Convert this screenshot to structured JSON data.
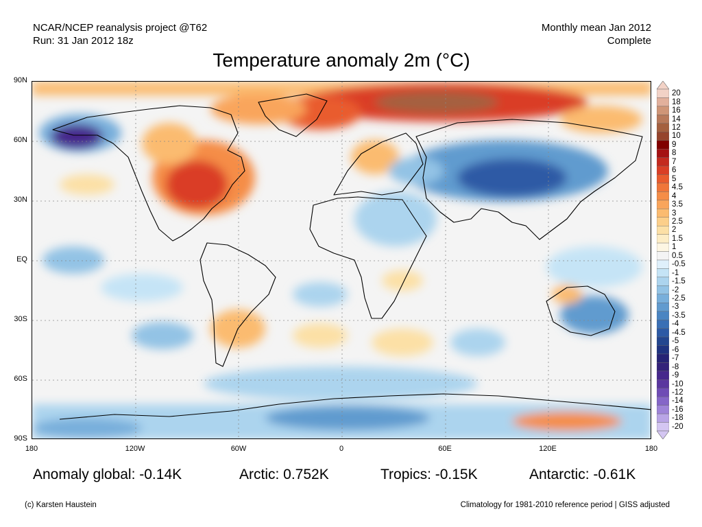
{
  "header": {
    "left_line1": "NCAR/NCEP reanalysis project @T62",
    "left_line2": "Run: 31 Jan 2012 18z",
    "right_line1": "Monthly mean Jan 2012",
    "right_line2": "Complete"
  },
  "title": "Temperature anomaly 2m (°C)",
  "axes": {
    "lat_labels": [
      "90N",
      "60N",
      "30N",
      "EQ",
      "30S",
      "60S",
      "90S"
    ],
    "lon_labels": [
      "180",
      "120W",
      "60W",
      "0",
      "60E",
      "120E",
      "180"
    ]
  },
  "colorbar": {
    "labels": [
      "20",
      "18",
      "16",
      "14",
      "12",
      "10",
      "9",
      "8",
      "7",
      "6",
      "5",
      "4.5",
      "4",
      "3.5",
      "3",
      "2.5",
      "2",
      "1.5",
      "1",
      "0.5",
      "-0.5",
      "-1",
      "-1.5",
      "-2",
      "-2.5",
      "-3",
      "-3.5",
      "-4",
      "-4.5",
      "-5",
      "-6",
      "-7",
      "-8",
      "-9",
      "-10",
      "-12",
      "-14",
      "-16",
      "-18",
      "-20"
    ],
    "colors": [
      "#f2d2c6",
      "#e2b09c",
      "#cf9577",
      "#b8795a",
      "#a4603f",
      "#96442c",
      "#800000",
      "#a51213",
      "#c42a1f",
      "#da3e26",
      "#e95b2e",
      "#f0763a",
      "#f58d47",
      "#f9a55b",
      "#fbbb70",
      "#fccf8a",
      "#fce0a6",
      "#fdedc5",
      "#fdf6e3",
      "#f4f4f4",
      "#dff0fb",
      "#c5e4f6",
      "#acd4ee",
      "#93c3e5",
      "#78afdb",
      "#619bcf",
      "#4a85c2",
      "#3a6fb5",
      "#2d5aa5",
      "#23468f",
      "#1f3380",
      "#262375",
      "#33227a",
      "#46288c",
      "#5a369f",
      "#6f4cb5",
      "#8566c8",
      "#9e84d8",
      "#b9a5e6",
      "#d4c6f2"
    ]
  },
  "stats": {
    "global": "Anomaly global: -0.14K",
    "arctic": "Arctic: 0.752K",
    "tropics": "Tropics: -0.15K",
    "antarctic": "Antarctic: -0.61K"
  },
  "footer": {
    "credit": "(c) Karsten Haustein",
    "note": "Climatology for 1981-2010 reference period | GISS adjusted"
  }
}
